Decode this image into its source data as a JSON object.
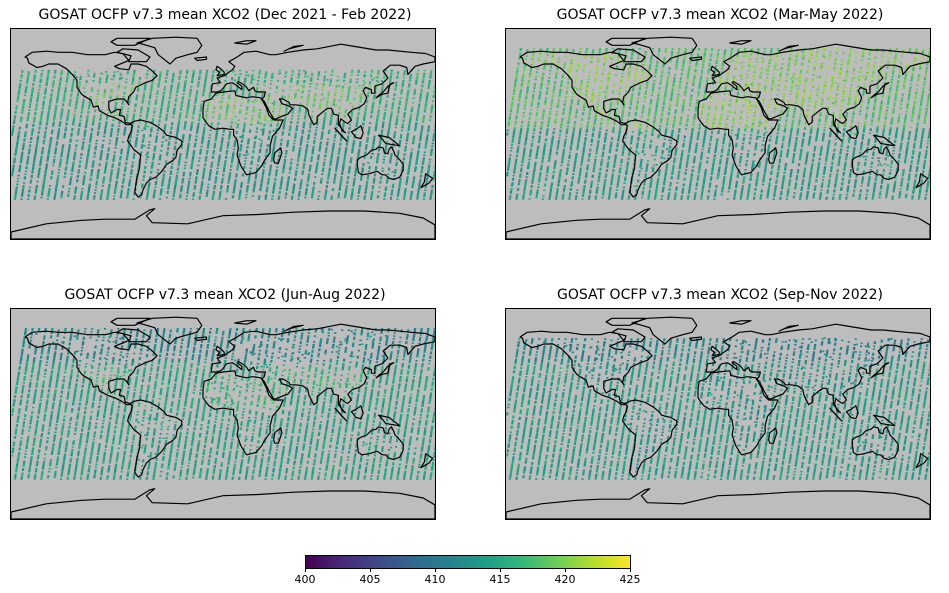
{
  "panels": [
    {
      "id": "p1",
      "title": "GOSAT OCFP v7.3 mean XCO2 (Dec 2021 - Feb 2022)",
      "season": "DJF"
    },
    {
      "id": "p2",
      "title": "GOSAT OCFP v7.3 mean XCO2 (Mar-May 2022)",
      "season": "MAM"
    },
    {
      "id": "p3",
      "title": "GOSAT OCFP v7.3 mean XCO2 (Jun-Aug 2022)",
      "season": "JJA"
    },
    {
      "id": "p4",
      "title": "GOSAT OCFP v7.3 mean XCO2 (Sep-Nov 2022)",
      "season": "SON"
    }
  ],
  "colorbar": {
    "min": 400,
    "max": 425,
    "colormap": "viridis",
    "ticks": [
      "400",
      "405",
      "410",
      "415",
      "420",
      "425"
    ]
  },
  "colors": {
    "land": "#bdbdbd",
    "coast": "#000000"
  }
}
